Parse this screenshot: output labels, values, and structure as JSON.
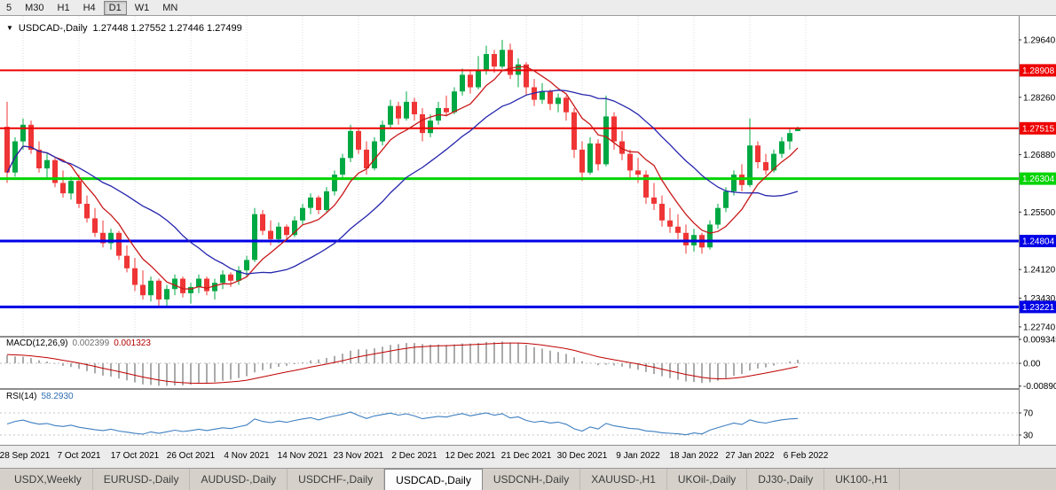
{
  "toolbar": {
    "timeframes": [
      "5",
      "M30",
      "H1",
      "H4",
      "D1",
      "W1",
      "MN"
    ],
    "active_timeframe": "D1"
  },
  "chart": {
    "dropdown_icon": "▼",
    "title": "USDCAD-,Daily",
    "ohlc_text": "1.27448 1.27552 1.27446 1.27499"
  },
  "chart_data": {
    "type": "candlestick",
    "symbol": "USDCAD",
    "timeframe": "Daily",
    "current_bar": {
      "open": 1.27448,
      "high": 1.27552,
      "low": 1.27446,
      "close": 1.27499
    },
    "x_labels": [
      "28 Sep 2021",
      "7 Oct 2021",
      "17 Oct 2021",
      "26 Oct 2021",
      "4 Nov 2021",
      "14 Nov 2021",
      "23 Nov 2021",
      "2 Dec 2021",
      "12 Dec 2021",
      "21 Dec 2021",
      "30 Dec 2021",
      "9 Jan 2022",
      "18 Jan 2022",
      "27 Jan 2022",
      "6 Feb 2022"
    ],
    "y_axis_ticks": [
      "1.29640",
      "1.28260",
      "1.26880",
      "1.25500",
      "1.24120",
      "1.23430",
      "1.22740"
    ],
    "colors": {
      "up": "#00a843",
      "down": "#ef3535",
      "ma_fast": "#c81818",
      "ma_slow": "#2525ad",
      "macd_hist": "#ababab",
      "macd_signal": "#c00000",
      "rsi": "#3e7fc1",
      "hline_red": "#ee0000",
      "hline_green": "#00d400",
      "hline_blue": "#0000e6"
    },
    "hlines": [
      {
        "price": 1.28908,
        "label": "1.28908",
        "color": "#ee0000",
        "width": 2
      },
      {
        "price": 1.27515,
        "label": "1.27515",
        "color": "#ee0000",
        "width": 2
      },
      {
        "price": 1.26304,
        "label": "1.26304",
        "color": "#00d400",
        "width": 3
      },
      {
        "price": 1.24804,
        "label": "1.24804",
        "color": "#0000e6",
        "width": 3
      },
      {
        "price": 1.23221,
        "label": "1.23221",
        "color": "#0000e6",
        "width": 3
      }
    ],
    "moving_averages": [
      {
        "period": 7,
        "color_key": "ma_fast"
      },
      {
        "period": 20,
        "color_key": "ma_slow"
      }
    ],
    "candles": [
      [
        1.2755,
        1.2815,
        1.262,
        1.2645
      ],
      [
        1.2645,
        1.273,
        1.2635,
        1.272
      ],
      [
        1.272,
        1.2775,
        1.27,
        1.276
      ],
      [
        1.276,
        1.277,
        1.269,
        1.27
      ],
      [
        1.27,
        1.272,
        1.2645,
        1.2655
      ],
      [
        1.2655,
        1.269,
        1.263,
        1.2675
      ],
      [
        1.2675,
        1.268,
        1.261,
        1.262
      ],
      [
        1.262,
        1.265,
        1.2585,
        1.2595
      ],
      [
        1.2595,
        1.2635,
        1.258,
        1.2625
      ],
      [
        1.2625,
        1.264,
        1.256,
        1.257
      ],
      [
        1.257,
        1.259,
        1.2525,
        1.2535
      ],
      [
        1.2535,
        1.256,
        1.249,
        1.25
      ],
      [
        1.25,
        1.253,
        1.2465,
        1.2475
      ],
      [
        1.2475,
        1.251,
        1.246,
        1.25
      ],
      [
        1.25,
        1.2505,
        1.2435,
        1.2445
      ],
      [
        1.2445,
        1.247,
        1.2405,
        1.2415
      ],
      [
        1.2415,
        1.244,
        1.236,
        1.2375
      ],
      [
        1.2375,
        1.241,
        1.234,
        1.235
      ],
      [
        1.235,
        1.2395,
        1.2335,
        1.2385
      ],
      [
        1.2385,
        1.239,
        1.2325,
        1.234
      ],
      [
        1.234,
        1.2375,
        1.2322,
        1.2365
      ],
      [
        1.2365,
        1.24,
        1.235,
        1.239
      ],
      [
        1.239,
        1.2395,
        1.2345,
        1.2355
      ],
      [
        1.2355,
        1.238,
        1.233,
        1.237
      ],
      [
        1.237,
        1.24,
        1.2355,
        1.239
      ],
      [
        1.239,
        1.2395,
        1.235,
        1.236
      ],
      [
        1.236,
        1.239,
        1.234,
        1.238
      ],
      [
        1.238,
        1.241,
        1.2365,
        1.24
      ],
      [
        1.24,
        1.2405,
        1.237,
        1.2385
      ],
      [
        1.2385,
        1.242,
        1.2375,
        1.241
      ],
      [
        1.241,
        1.2445,
        1.2395,
        1.2435
      ],
      [
        1.2435,
        1.256,
        1.243,
        1.2545
      ],
      [
        1.2545,
        1.2555,
        1.2495,
        1.2505
      ],
      [
        1.2505,
        1.253,
        1.247,
        1.2485
      ],
      [
        1.2485,
        1.2525,
        1.2475,
        1.2515
      ],
      [
        1.2515,
        1.252,
        1.248,
        1.2495
      ],
      [
        1.2495,
        1.254,
        1.249,
        1.253
      ],
      [
        1.253,
        1.257,
        1.252,
        1.256
      ],
      [
        1.256,
        1.2595,
        1.2545,
        1.2585
      ],
      [
        1.2585,
        1.259,
        1.2545,
        1.2555
      ],
      [
        1.2555,
        1.261,
        1.255,
        1.26
      ],
      [
        1.26,
        1.265,
        1.259,
        1.264
      ],
      [
        1.264,
        1.269,
        1.263,
        1.268
      ],
      [
        1.268,
        1.276,
        1.267,
        1.2745
      ],
      [
        1.2745,
        1.275,
        1.269,
        1.27
      ],
      [
        1.27,
        1.272,
        1.264,
        1.2655
      ],
      [
        1.2655,
        1.273,
        1.265,
        1.272
      ],
      [
        1.272,
        1.277,
        1.271,
        1.276
      ],
      [
        1.276,
        1.282,
        1.275,
        1.2805
      ],
      [
        1.2805,
        1.2815,
        1.276,
        1.2775
      ],
      [
        1.2775,
        1.284,
        1.277,
        1.2815
      ],
      [
        1.2815,
        1.2825,
        1.277,
        1.2785
      ],
      [
        1.2785,
        1.28,
        1.272,
        1.274
      ],
      [
        1.274,
        1.2785,
        1.273,
        1.277
      ],
      [
        1.277,
        1.2815,
        1.276,
        1.28
      ],
      [
        1.28,
        1.283,
        1.278,
        1.279
      ],
      [
        1.279,
        1.285,
        1.2785,
        1.284
      ],
      [
        1.284,
        1.2895,
        1.283,
        1.288
      ],
      [
        1.288,
        1.289,
        1.2835,
        1.285
      ],
      [
        1.285,
        1.2925,
        1.2845,
        1.289
      ],
      [
        1.289,
        1.295,
        1.288,
        1.293
      ],
      [
        1.293,
        1.294,
        1.2885,
        1.29
      ],
      [
        1.29,
        1.2964,
        1.2895,
        1.294
      ],
      [
        1.294,
        1.2955,
        1.287,
        1.288
      ],
      [
        1.288,
        1.292,
        1.285,
        1.2905
      ],
      [
        1.2905,
        1.291,
        1.283,
        1.285
      ],
      [
        1.285,
        1.287,
        1.2805,
        1.282
      ],
      [
        1.282,
        1.286,
        1.281,
        1.284
      ],
      [
        1.284,
        1.2845,
        1.2795,
        1.281
      ],
      [
        1.281,
        1.2835,
        1.279,
        1.2825
      ],
      [
        1.2825,
        1.283,
        1.277,
        1.279
      ],
      [
        1.279,
        1.28,
        1.268,
        1.27
      ],
      [
        1.27,
        1.272,
        1.2625,
        1.2645
      ],
      [
        1.2645,
        1.273,
        1.264,
        1.2715
      ],
      [
        1.2715,
        1.2725,
        1.265,
        1.2665
      ],
      [
        1.2665,
        1.283,
        1.266,
        1.278
      ],
      [
        1.278,
        1.279,
        1.27,
        1.272
      ],
      [
        1.272,
        1.2745,
        1.2675,
        1.269
      ],
      [
        1.269,
        1.27,
        1.263,
        1.265
      ],
      [
        1.265,
        1.268,
        1.262,
        1.264
      ],
      [
        1.264,
        1.265,
        1.257,
        1.2585
      ],
      [
        1.2585,
        1.262,
        1.2555,
        1.257
      ],
      [
        1.257,
        1.259,
        1.2515,
        1.253
      ],
      [
        1.253,
        1.256,
        1.25,
        1.2515
      ],
      [
        1.2515,
        1.2545,
        1.2485,
        1.25
      ],
      [
        1.25,
        1.252,
        1.245,
        1.247
      ],
      [
        1.247,
        1.251,
        1.2455,
        1.2495
      ],
      [
        1.2495,
        1.25,
        1.245,
        1.2465
      ],
      [
        1.2465,
        1.253,
        1.246,
        1.252
      ],
      [
        1.252,
        1.257,
        1.251,
        1.256
      ],
      [
        1.256,
        1.261,
        1.255,
        1.26
      ],
      [
        1.26,
        1.265,
        1.259,
        1.264
      ],
      [
        1.264,
        1.2665,
        1.26,
        1.2615
      ],
      [
        1.2615,
        1.2775,
        1.261,
        1.271
      ],
      [
        1.271,
        1.272,
        1.2655,
        1.267
      ],
      [
        1.267,
        1.269,
        1.264,
        1.265
      ],
      [
        1.265,
        1.27,
        1.2645,
        1.269
      ],
      [
        1.269,
        1.273,
        1.268,
        1.272
      ],
      [
        1.272,
        1.275,
        1.27,
        1.274
      ],
      [
        1.27448,
        1.27552,
        1.27446,
        1.27499
      ]
    ],
    "indicators": {
      "macd": {
        "label": "MACD(12,26,9)",
        "value_main": "0.002399",
        "value_signal": "0.001323",
        "axis_labels": [
          "0.009345",
          "0.00",
          "-0.008905"
        ],
        "fast": 12,
        "slow": 26,
        "signal": 9
      },
      "rsi": {
        "label": "RSI(14)",
        "value": "58.2930",
        "period": 14,
        "levels": [
          "70",
          "30"
        ]
      }
    }
  },
  "tabs": {
    "items": [
      "USDX,Weekly",
      "EURUSD-,Daily",
      "AUDUSD-,Daily",
      "USDCHF-,Daily",
      "USDCAD-,Daily",
      "USDCNH-,Daily",
      "XAUUSD-,H1",
      "UKOil-,Daily",
      "DJ30-,Daily",
      "UK100-,H1"
    ],
    "active": "USDCAD-,Daily"
  }
}
